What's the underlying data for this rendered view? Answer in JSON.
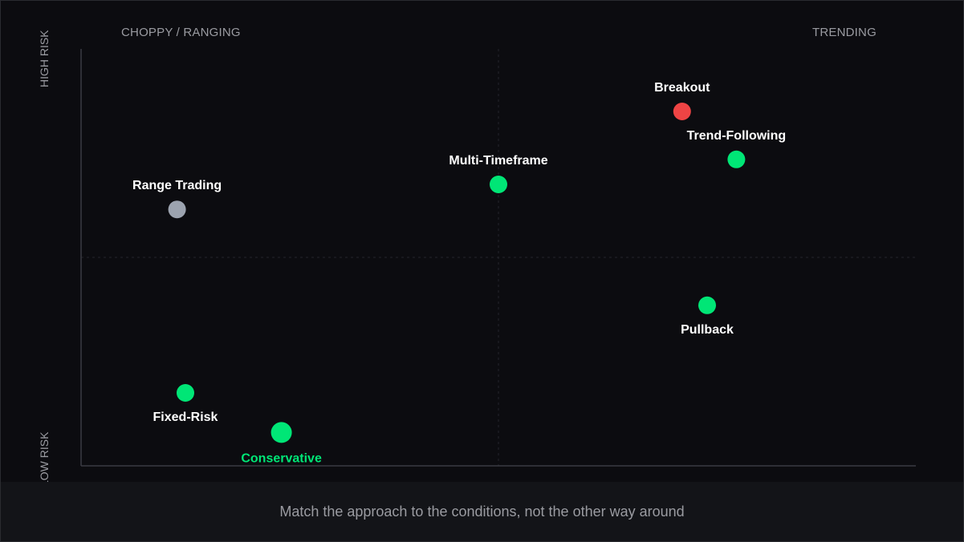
{
  "chart_data": {
    "type": "scatter",
    "title": "",
    "quadrant_labels": {
      "top_left": "CHOPPY / RANGING",
      "top_right": "TRENDING",
      "y_top": "HIGH RISK",
      "y_bottom": "LOW RISK"
    },
    "xlim": [
      0,
      1
    ],
    "ylim": [
      0,
      1
    ],
    "grid": false,
    "points": [
      {
        "name": "Breakout",
        "x": 0.72,
        "y": 0.85,
        "color": "#ef4444",
        "label_pos": "above",
        "highlight": false
      },
      {
        "name": "Trend-Following",
        "x": 0.785,
        "y": 0.735,
        "color": "#00e676",
        "label_pos": "above",
        "highlight": false
      },
      {
        "name": "Multi-Timeframe",
        "x": 0.5,
        "y": 0.675,
        "color": "#00e676",
        "label_pos": "above",
        "highlight": false
      },
      {
        "name": "Range Trading",
        "x": 0.115,
        "y": 0.615,
        "color": "#9ca3af",
        "label_pos": "above",
        "highlight": false
      },
      {
        "name": "Pullback",
        "x": 0.75,
        "y": 0.385,
        "color": "#00e676",
        "label_pos": "below",
        "highlight": false
      },
      {
        "name": "Fixed-Risk",
        "x": 0.125,
        "y": 0.175,
        "color": "#00e676",
        "label_pos": "below",
        "highlight": false
      },
      {
        "name": "Conservative",
        "x": 0.24,
        "y": 0.08,
        "color": "#00e676",
        "label_pos": "below",
        "highlight": true
      }
    ]
  },
  "footer": {
    "caption": "Match the approach to the conditions, not the other way around"
  }
}
